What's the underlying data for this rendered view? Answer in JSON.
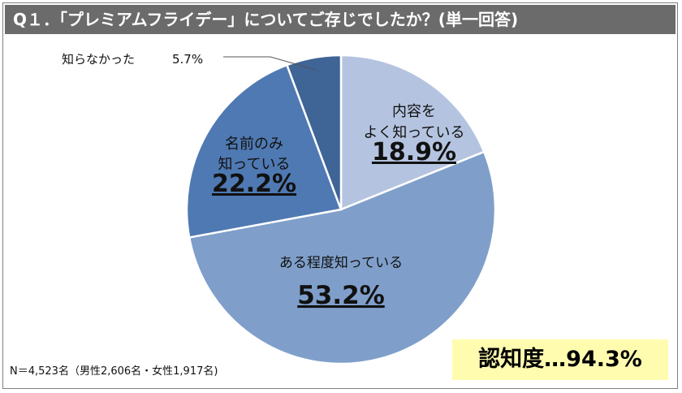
{
  "title": "Q１．「プレミアムフライデー」についてご存じでしたか？(単一回答)",
  "note": "N＝4,523名（男性2,606名・女性1,917名)",
  "badge": "認知度…94.3%",
  "colors": {
    "title_bg": "#6b6b6b",
    "badge_bg": "#fffcb0",
    "slice_outline": "#ffffff"
  },
  "chart_data": {
    "type": "pie",
    "slices": [
      {
        "label_lines": [
          "内容を",
          "よく知っている"
        ],
        "value": 18.9,
        "value_text": "18.9%",
        "color": "#b4c4e0"
      },
      {
        "label_lines": [
          "ある程度知っている"
        ],
        "value": 53.2,
        "value_text": "53.2%",
        "color": "#7f9fca"
      },
      {
        "label_lines": [
          "名前のみ",
          "知っている"
        ],
        "value": 22.2,
        "value_text": "22.2%",
        "color": "#4f79b2"
      },
      {
        "label_lines": [
          "知らなかった"
        ],
        "value": 5.7,
        "value_text": "5.7%",
        "color": "#3f6496"
      }
    ],
    "start": "12 o'clock",
    "direction": "clockwise"
  }
}
